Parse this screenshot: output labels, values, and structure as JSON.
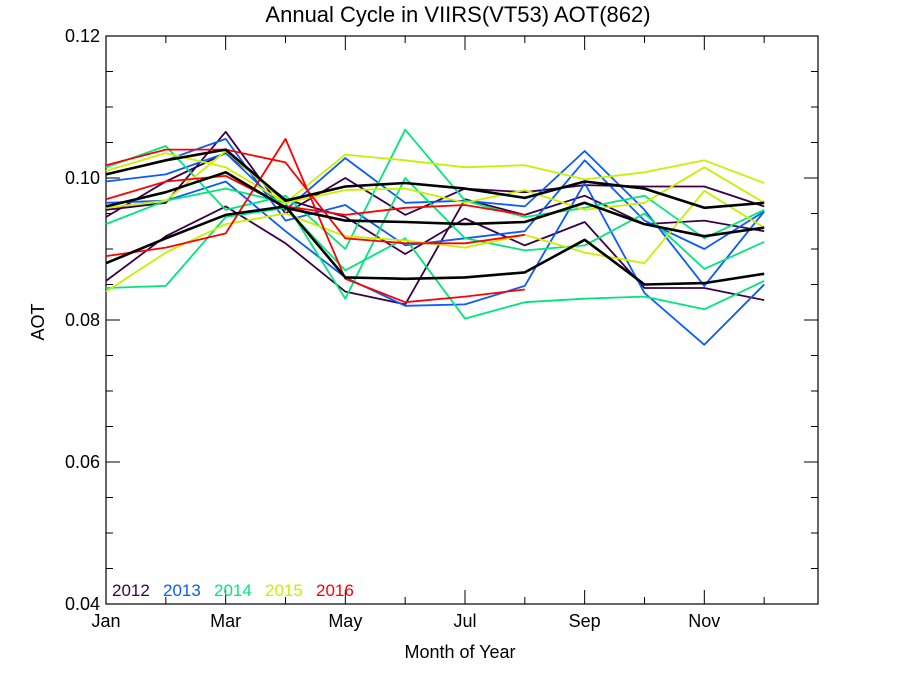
{
  "chart_data": {
    "type": "line",
    "title": "Annual Cycle in VIIRS(VT53) AOT(862)",
    "xlabel": "Month of Year",
    "ylabel": "AOT",
    "xlim": [
      1,
      12.9
    ],
    "ylim": [
      0.04,
      0.12
    ],
    "x_ticks": [
      {
        "value": 1,
        "label": "Jan"
      },
      {
        "value": 3,
        "label": "Mar"
      },
      {
        "value": 5,
        "label": "May"
      },
      {
        "value": 7,
        "label": "Jul"
      },
      {
        "value": 9,
        "label": "Sep"
      },
      {
        "value": 11,
        "label": "Nov"
      }
    ],
    "y_ticks": [
      {
        "value": 0.04,
        "label": "0.04"
      },
      {
        "value": 0.06,
        "label": "0.06"
      },
      {
        "value": 0.08,
        "label": "0.08"
      },
      {
        "value": 0.1,
        "label": "0.10"
      },
      {
        "value": 0.12,
        "label": "0.12"
      }
    ],
    "grid": false,
    "legend_position": "bottom-left",
    "legend": [
      {
        "label": "2012",
        "color": "#3a0048"
      },
      {
        "label": "2013",
        "color": "#0a5aff"
      },
      {
        "label": "2014",
        "color": "#00e67a"
      },
      {
        "label": "2015",
        "color": "#c8f000"
      },
      {
        "label": "2016",
        "color": "#ff0000"
      }
    ],
    "x": [
      1,
      2,
      3,
      4,
      5,
      6,
      7,
      8,
      9,
      10,
      11,
      12
    ],
    "series": [
      {
        "color": "#3a0048",
        "values": [
          0.0955,
          0.0965,
          0.1065,
          0.095,
          0.1,
          0.0948,
          0.0985,
          0.098,
          0.099,
          0.0988,
          0.0988,
          0.096
        ]
      },
      {
        "color": "#3a0048",
        "values": [
          0.0945,
          0.0995,
          0.1035,
          0.097,
          0.0945,
          0.0893,
          0.0943,
          0.0905,
          0.0938,
          0.0845,
          0.0845,
          0.0828
        ]
      },
      {
        "color": "#3a0048",
        "values": [
          0.0855,
          0.0918,
          0.096,
          0.0908,
          0.084,
          0.0822,
          0.097,
          0.0948,
          0.0975,
          0.0935,
          0.094,
          0.0925
        ]
      },
      {
        "color": "#0a5aff",
        "values": [
          0.0995,
          0.1005,
          0.1035,
          0.0955,
          0.1028,
          0.0965,
          0.0968,
          0.096,
          0.1038,
          0.0955,
          0.0848,
          0.0953
        ]
      },
      {
        "color": "#0a5aff",
        "values": [
          0.1005,
          0.1025,
          0.1055,
          0.094,
          0.0962,
          0.0905,
          0.0915,
          0.0925,
          0.1025,
          0.094,
          0.09,
          0.0953
        ]
      },
      {
        "color": "#0a5aff",
        "values": [
          0.0965,
          0.0968,
          0.0995,
          0.0925,
          0.086,
          0.082,
          0.0822,
          0.0848,
          0.0993,
          0.0838,
          0.0765,
          0.085
        ]
      },
      {
        "color": "#00e67a",
        "values": [
          0.1015,
          0.1045,
          0.0955,
          0.0975,
          0.09,
          0.1068,
          0.0968,
          0.0945,
          0.0958,
          0.0975,
          0.0915,
          0.0955
        ]
      },
      {
        "color": "#00e67a",
        "values": [
          0.0935,
          0.0968,
          0.0985,
          0.0965,
          0.083,
          0.1,
          0.0915,
          0.0898,
          0.0905,
          0.095,
          0.0872,
          0.091
        ]
      },
      {
        "color": "#00e67a",
        "values": [
          0.0845,
          0.0848,
          0.0945,
          0.0958,
          0.087,
          0.0915,
          0.0802,
          0.0825,
          0.083,
          0.0833,
          0.0815,
          0.0855
        ]
      },
      {
        "color": "#c8f000",
        "values": [
          0.101,
          0.1035,
          0.1015,
          0.0965,
          0.1033,
          0.1025,
          0.1015,
          0.1018,
          0.0998,
          0.1008,
          0.1025,
          0.0993
        ]
      },
      {
        "color": "#c8f000",
        "values": [
          0.0958,
          0.0968,
          0.1038,
          0.0965,
          0.0983,
          0.0985,
          0.0965,
          0.0983,
          0.0955,
          0.0965,
          0.1015,
          0.0965
        ]
      },
      {
        "color": "#c8f000",
        "values": [
          0.084,
          0.0895,
          0.0935,
          0.095,
          0.0918,
          0.0912,
          0.0902,
          0.092,
          0.0895,
          0.088,
          0.0982,
          0.093
        ]
      },
      {
        "color": "#ff0000",
        "values": [
          0.1018,
          0.104,
          0.104,
          0.1022,
          0.0915,
          0.0908,
          0.0908,
          0.092,
          null,
          null,
          null,
          null
        ]
      },
      {
        "color": "#ff0000",
        "values": [
          0.097,
          0.0995,
          0.1003,
          0.096,
          0.0948,
          0.0958,
          0.0962,
          0.0948,
          null,
          null,
          null,
          null
        ]
      },
      {
        "color": "#ff0000",
        "values": [
          0.089,
          0.0902,
          0.0922,
          0.1055,
          0.0858,
          0.0825,
          0.0833,
          0.0843,
          null,
          null,
          null,
          null
        ]
      },
      {
        "color": "#000000",
        "values": [
          0.1005,
          0.1025,
          0.104,
          0.0968,
          0.0988,
          0.0993,
          0.0985,
          0.0972,
          0.0995,
          0.0985,
          0.0958,
          0.0965
        ]
      },
      {
        "color": "#000000",
        "values": [
          0.096,
          0.098,
          0.1008,
          0.0958,
          0.094,
          0.0938,
          0.0935,
          0.0938,
          0.0965,
          0.0935,
          0.0918,
          0.093
        ]
      },
      {
        "color": "#000000",
        "values": [
          0.088,
          0.0915,
          0.0948,
          0.096,
          0.086,
          0.0858,
          0.086,
          0.0867,
          0.0913,
          0.085,
          0.0852,
          0.0865
        ]
      }
    ]
  }
}
